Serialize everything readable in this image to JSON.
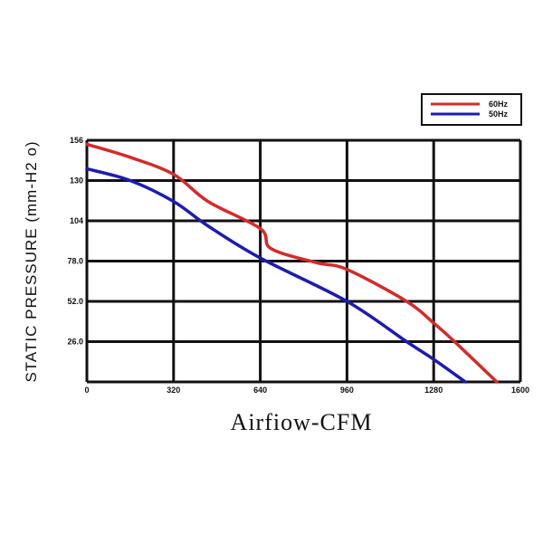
{
  "chart_data": {
    "type": "line",
    "title": "",
    "xlabel": "Airfiow-CFM",
    "ylabel": "STATIC PRESSURE (mm-H2 o)",
    "xlim": [
      0,
      1600
    ],
    "ylim": [
      0,
      156
    ],
    "x_ticks": [
      "0",
      "320",
      "640",
      "960",
      "1280",
      "1600"
    ],
    "x_tick_values": [
      0,
      320,
      640,
      960,
      1280,
      1600
    ],
    "y_ticks": [
      "156",
      "130",
      "104",
      "78.0",
      "52.0",
      "26.0"
    ],
    "y_tick_values": [
      156,
      130,
      104,
      78,
      52,
      26
    ],
    "grid": true,
    "legend_position": "top-right",
    "series": [
      {
        "name": "60Hz",
        "color": "#d42a2a",
        "x": [
          0,
          160,
          320,
          447,
          640,
          680,
          847,
          960,
          1180,
          1280,
          1357,
          1513
        ],
        "y": [
          153.4,
          145,
          134,
          116.5,
          99,
          86,
          77,
          72.6,
          52,
          38,
          26,
          0
        ]
      },
      {
        "name": "50Hz",
        "color": "#1c1cb0",
        "x": [
          0,
          160,
          320,
          447,
          640,
          960,
          1180,
          1280,
          1397
        ],
        "y": [
          137.6,
          130,
          116.5,
          100.7,
          80,
          52,
          26,
          14.6,
          0
        ]
      }
    ]
  }
}
